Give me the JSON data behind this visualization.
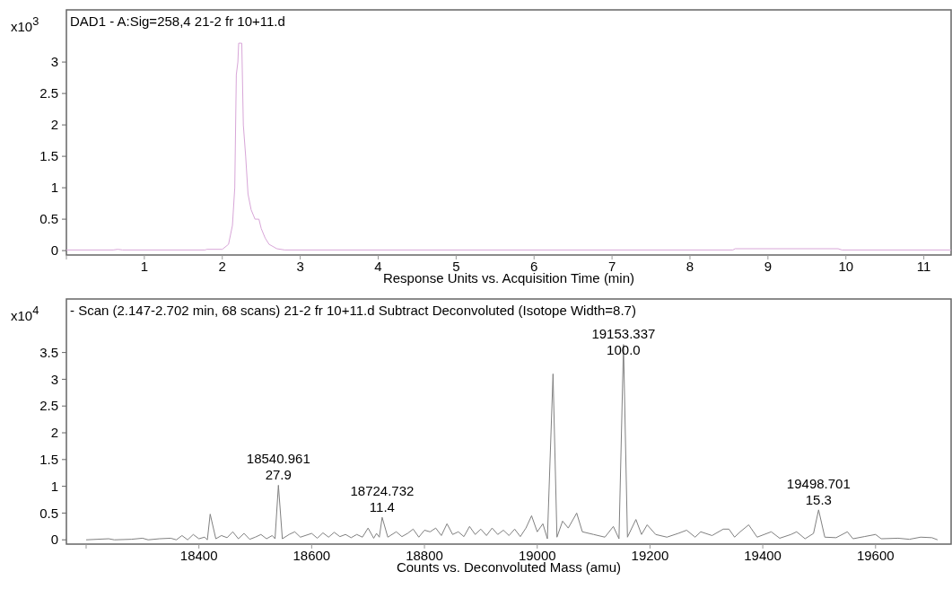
{
  "chart_data": [
    {
      "type": "line",
      "title": "DAD1 - A:Sig=258,4 21-2 fr 10+11.d",
      "xlabel": "Response Units vs. Acquisition Time (min)",
      "ylabel": "x10$^{3}$",
      "xlim": [
        0,
        11.35
      ],
      "ylim": [
        -0.07,
        3.83
      ],
      "xticks": [
        {
          "value": 0,
          "label": null
        },
        1,
        2,
        3,
        4,
        5,
        6,
        7,
        8,
        9,
        10,
        11
      ],
      "yticks": [
        0,
        0.5,
        1,
        1.5,
        2,
        2.5,
        3
      ],
      "series": [
        {
          "color": "#d8a6d8",
          "x": [
            0,
            0.6,
            0.66,
            0.72,
            1.78,
            1.8,
            2.0,
            2.08,
            2.13,
            2.16,
            2.18,
            2.2,
            2.21,
            2.25,
            2.27,
            2.3,
            2.33,
            2.37,
            2.42,
            2.47,
            2.5,
            2.55,
            2.6,
            2.7,
            2.8,
            8.55,
            8.58,
            9.9,
            9.95,
            11.35
          ],
          "values": [
            0.01,
            0.01,
            0.02,
            0.01,
            0.01,
            0.02,
            0.02,
            0.1,
            0.4,
            1.0,
            2.8,
            3.0,
            3.3,
            3.3,
            2.0,
            1.5,
            0.9,
            0.65,
            0.5,
            0.5,
            0.35,
            0.2,
            0.1,
            0.03,
            0.01,
            0.01,
            0.03,
            0.03,
            0.01,
            0.01
          ]
        }
      ]
    },
    {
      "type": "line",
      "title": "- Scan (2.147-2.702 min, 68 scans) 21-2 fr 10+11.d  Subtract Deconvoluted (Isotope Width=8.7)",
      "xlabel": "Counts vs. Deconvoluted Mass (amu)",
      "ylabel": "x10$^{4}$",
      "xlim": [
        18165,
        19734
      ],
      "ylim": [
        -0.08,
        4.5
      ],
      "xticks": [
        {
          "value": 18200,
          "label": null
        },
        18400,
        18600,
        18800,
        19000,
        19200,
        19400,
        19600
      ],
      "yticks": [
        0,
        0.5,
        1,
        1.5,
        2,
        2.5,
        3,
        3.5
      ],
      "annotations": [
        {
          "text": "18540.961\n27.9",
          "x": 18541,
          "y": 1.02
        },
        {
          "text": "18724.732\n11.4",
          "x": 18725,
          "y": 0.42
        },
        {
          "text": "19153.337\n100.0",
          "x": 19153,
          "y": 3.65
        },
        {
          "text": "19498.701\n15.3",
          "x": 19499,
          "y": 0.56
        }
      ],
      "series": [
        {
          "color": "#808080",
          "x": [
            18200,
            18240,
            18250,
            18280,
            18300,
            18310,
            18330,
            18350,
            18360,
            18370,
            18380,
            18390,
            18400,
            18410,
            18415,
            18420,
            18430,
            18440,
            18450,
            18460,
            18470,
            18480,
            18490,
            18500,
            18510,
            18520,
            18530,
            18535,
            18541,
            18548,
            18560,
            18570,
            18580,
            18600,
            18610,
            18620,
            18630,
            18640,
            18650,
            18660,
            18670,
            18680,
            18690,
            18700,
            18710,
            18715,
            18720,
            18725,
            18735,
            18750,
            18760,
            18770,
            18780,
            18790,
            18800,
            18810,
            18820,
            18830,
            18840,
            18850,
            18860,
            18870,
            18880,
            18890,
            18900,
            18910,
            18920,
            18930,
            18940,
            18950,
            18960,
            18970,
            18980,
            18990,
            19000,
            19010,
            19018,
            19028,
            19035,
            19045,
            19055,
            19070,
            19080,
            19100,
            19120,
            19135,
            19145,
            19153,
            19160,
            19175,
            19185,
            19195,
            19210,
            19230,
            19250,
            19265,
            19280,
            19290,
            19310,
            19330,
            19340,
            19350,
            19360,
            19375,
            19390,
            19415,
            19430,
            19450,
            19460,
            19475,
            19490,
            19499,
            19510,
            19530,
            19550,
            19560,
            19580,
            19600,
            19610,
            19640,
            19660,
            19680,
            19700,
            19710
          ],
          "values": [
            0,
            0.02,
            0,
            0.01,
            0.03,
            0,
            0.02,
            0.03,
            0,
            0.08,
            0,
            0.1,
            0.02,
            0.05,
            0,
            0.48,
            0.02,
            0.08,
            0.04,
            0.15,
            0.02,
            0.12,
            0.01,
            0.05,
            0.1,
            0.02,
            0.08,
            0.02,
            1.02,
            0.02,
            0.1,
            0.15,
            0.05,
            0.12,
            0.03,
            0.13,
            0.05,
            0.14,
            0.06,
            0.1,
            0.04,
            0.1,
            0.05,
            0.22,
            0.03,
            0.12,
            0.05,
            0.42,
            0.05,
            0.15,
            0.06,
            0.12,
            0.2,
            0.05,
            0.18,
            0.15,
            0.22,
            0.08,
            0.3,
            0.1,
            0.15,
            0.06,
            0.25,
            0.1,
            0.2,
            0.08,
            0.22,
            0.1,
            0.18,
            0.08,
            0.2,
            0.06,
            0.22,
            0.45,
            0.15,
            0.3,
            0.02,
            3.1,
            0.05,
            0.35,
            0.22,
            0.5,
            0.15,
            0.1,
            0.05,
            0.25,
            0.02,
            3.65,
            0.05,
            0.38,
            0.1,
            0.28,
            0.1,
            0.05,
            0.12,
            0.18,
            0.05,
            0.15,
            0.08,
            0.2,
            0.2,
            0.05,
            0.15,
            0.28,
            0.05,
            0.15,
            0.03,
            0.1,
            0.15,
            0.02,
            0.12,
            0.56,
            0.05,
            0.04,
            0.15,
            0.02,
            0.06,
            0.1,
            0.02,
            0.03,
            0.01,
            0.05,
            0.04,
            0
          ]
        }
      ]
    }
  ]
}
